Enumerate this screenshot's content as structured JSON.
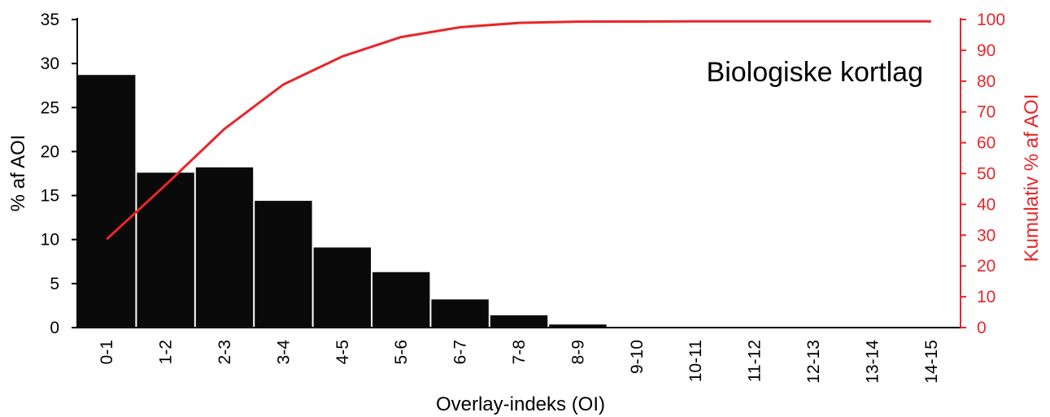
{
  "chart_data": {
    "type": "bar",
    "categories": [
      "0-1",
      "1-2",
      "2-3",
      "3-4",
      "4-5",
      "5-6",
      "6-7",
      "7-8",
      "8-9",
      "9-10",
      "10-11",
      "11-12",
      "12-13",
      "13-14",
      "14-15"
    ],
    "series": [
      {
        "values": [
          28.7,
          17.6,
          18.2,
          14.4,
          9.1,
          6.3,
          3.2,
          1.4,
          0.35,
          0.05,
          0.02,
          0.01,
          0.01,
          0.01,
          0.0
        ]
      },
      {
        "type": "line",
        "axis": "right",
        "values": [
          28.7,
          46.3,
          64.5,
          78.9,
          88.0,
          94.3,
          97.5,
          98.9,
          99.3,
          99.35,
          99.4,
          99.4,
          99.4,
          99.4,
          99.4
        ]
      }
    ],
    "xlabel": "Overlay-indeks (OI)",
    "ylabel": "% af AOI",
    "y2label": "Kumulativ % af AOI",
    "ylim": [
      0,
      35
    ],
    "y2lim": [
      0,
      100
    ],
    "yticks": [
      "0",
      "5",
      "10",
      "15",
      "20",
      "25",
      "30",
      "35"
    ],
    "y2ticks": [
      "0",
      "10",
      "20",
      "30",
      "40",
      "50",
      "60",
      "70",
      "80",
      "90",
      "100"
    ],
    "annotation": "Biologiske kortlag",
    "grid": false,
    "colors": {
      "bars": "#0a0a0a",
      "line": "#e8262a",
      "axis_left": "#000000",
      "axis_right": "#e8262a"
    }
  }
}
